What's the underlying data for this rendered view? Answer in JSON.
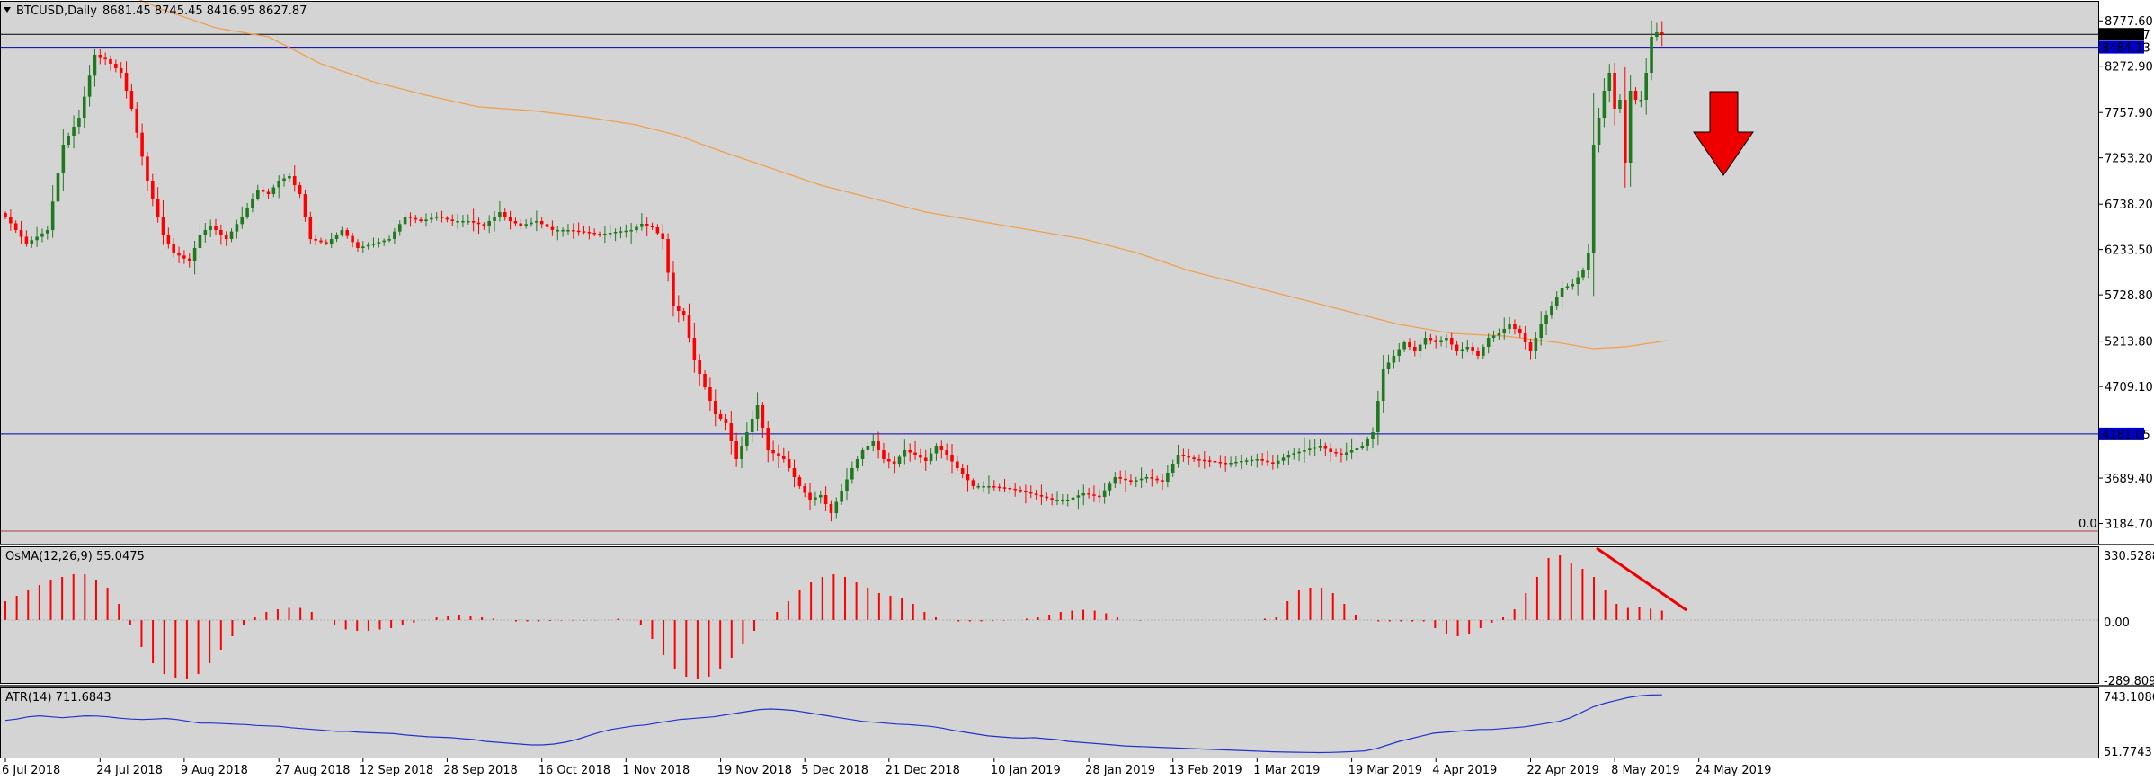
{
  "colors": {
    "background": "#d4d4d4",
    "frame": "#000000",
    "bull": "#1f7a1f",
    "bear": "#ff0000",
    "ma": "#f0a050",
    "hline_blue": "#0000aa",
    "hline_black": "#000000",
    "hline_zero": "#b04040",
    "histogram": "#ff0000",
    "atr_line": "#2233cc",
    "price_tag_black": "#000000",
    "price_tag_blue": "#0000cc",
    "arrow": "#ee0000",
    "arrow_outline": "#000000"
  },
  "header": {
    "title": "BTCUSD,Daily",
    "ohlc": "8681.45 8745.45 8416.95 8627.87",
    "menu_icon": "triangle-down-icon"
  },
  "price_tags": {
    "last": "8627.87",
    "level_high": "8484.13",
    "level_low": "4181.05",
    "zero_label": "0.0"
  },
  "osma": {
    "label": "OsMA(12,26,9) 55.0475",
    "ticks": [
      "330.5288",
      "0.00",
      "-289.8096"
    ]
  },
  "atr": {
    "label": "ATR(14) 711.6843",
    "ticks": [
      "743.1086",
      "51.7743"
    ]
  },
  "chart_data": {
    "type": "candlestick",
    "symbol": "BTCUSD",
    "timeframe": "Daily",
    "ylim": [
      2950,
      9000
    ],
    "y_ticks": [
      8777.6,
      8272.9,
      7757.9,
      7253.2,
      6738.2,
      6233.5,
      5728.8,
      5213.8,
      4709.1,
      3689.4,
      3184.7
    ],
    "y_tick_labels": [
      "8777.60",
      "8272.90",
      "7757.90",
      "7253.20",
      "6738.20",
      "6233.50",
      "5728.80",
      "5213.80",
      "4709.10",
      "3689.40",
      "3184.70"
    ],
    "x_labels": [
      {
        "label": "6 Jul 2018",
        "i": 0
      },
      {
        "label": "24 Jul 2018",
        "i": 18
      },
      {
        "label": "9 Aug 2018",
        "i": 34
      },
      {
        "label": "27 Aug 2018",
        "i": 52
      },
      {
        "label": "12 Sep 2018",
        "i": 68
      },
      {
        "label": "28 Sep 2018",
        "i": 84
      },
      {
        "label": "16 Oct 2018",
        "i": 102
      },
      {
        "label": "1 Nov 2018",
        "i": 118
      },
      {
        "label": "19 Nov 2018",
        "i": 136
      },
      {
        "label": "5 Dec 2018",
        "i": 152
      },
      {
        "label": "21 Dec 2018",
        "i": 168
      },
      {
        "label": "10 Jan 2019",
        "i": 188
      },
      {
        "label": "28 Jan 2019",
        "i": 206
      },
      {
        "label": "13 Feb 2019",
        "i": 222
      },
      {
        "label": "1 Mar 2019",
        "i": 238
      },
      {
        "label": "19 Mar 2019",
        "i": 256
      },
      {
        "label": "4 Apr 2019",
        "i": 272
      },
      {
        "label": "22 Apr 2019",
        "i": 290
      },
      {
        "label": "8 May 2019",
        "i": 306
      },
      {
        "label": "24 May 2019",
        "i": 322
      }
    ],
    "close_anchors": [
      [
        0,
        6600
      ],
      [
        4,
        6300
      ],
      [
        8,
        6450
      ],
      [
        11,
        7400
      ],
      [
        14,
        7700
      ],
      [
        17,
        8400
      ],
      [
        19,
        8350
      ],
      [
        22,
        8200
      ],
      [
        24,
        7800
      ],
      [
        27,
        7000
      ],
      [
        30,
        6400
      ],
      [
        32,
        6200
      ],
      [
        35,
        6100
      ],
      [
        37,
        6400
      ],
      [
        39,
        6500
      ],
      [
        42,
        6350
      ],
      [
        45,
        6600
      ],
      [
        48,
        6900
      ],
      [
        50,
        6850
      ],
      [
        52,
        7000
      ],
      [
        54,
        7050
      ],
      [
        56,
        6850
      ],
      [
        58,
        6350
      ],
      [
        61,
        6300
      ],
      [
        64,
        6450
      ],
      [
        67,
        6250
      ],
      [
        70,
        6300
      ],
      [
        73,
        6350
      ],
      [
        76,
        6600
      ],
      [
        79,
        6550
      ],
      [
        82,
        6600
      ],
      [
        85,
        6550
      ],
      [
        88,
        6550
      ],
      [
        91,
        6500
      ],
      [
        94,
        6650
      ],
      [
        96,
        6550
      ],
      [
        98,
        6500
      ],
      [
        101,
        6550
      ],
      [
        104,
        6450
      ],
      [
        107,
        6450
      ],
      [
        110,
        6430
      ],
      [
        113,
        6400
      ],
      [
        116,
        6430
      ],
      [
        119,
        6450
      ],
      [
        121,
        6520
      ],
      [
        123,
        6480
      ],
      [
        125,
        6350
      ],
      [
        127,
        5600
      ],
      [
        129,
        5500
      ],
      [
        131,
        5000
      ],
      [
        133,
        4700
      ],
      [
        135,
        4400
      ],
      [
        137,
        4300
      ],
      [
        139,
        3900
      ],
      [
        141,
        4200
      ],
      [
        143,
        4500
      ],
      [
        145,
        4000
      ],
      [
        148,
        3900
      ],
      [
        151,
        3600
      ],
      [
        153,
        3450
      ],
      [
        155,
        3500
      ],
      [
        157,
        3300
      ],
      [
        159,
        3550
      ],
      [
        161,
        3800
      ],
      [
        163,
        4000
      ],
      [
        165,
        4100
      ],
      [
        167,
        3900
      ],
      [
        169,
        3850
      ],
      [
        171,
        4000
      ],
      [
        173,
        3950
      ],
      [
        175,
        3880
      ],
      [
        177,
        4050
      ],
      [
        179,
        3950
      ],
      [
        181,
        3800
      ],
      [
        184,
        3600
      ],
      [
        187,
        3600
      ],
      [
        190,
        3580
      ],
      [
        193,
        3550
      ],
      [
        196,
        3500
      ],
      [
        199,
        3450
      ],
      [
        202,
        3450
      ],
      [
        205,
        3520
      ],
      [
        208,
        3480
      ],
      [
        211,
        3700
      ],
      [
        214,
        3650
      ],
      [
        217,
        3700
      ],
      [
        220,
        3650
      ],
      [
        223,
        3950
      ],
      [
        226,
        3900
      ],
      [
        229,
        3880
      ],
      [
        232,
        3850
      ],
      [
        235,
        3880
      ],
      [
        238,
        3900
      ],
      [
        241,
        3850
      ],
      [
        244,
        3950
      ],
      [
        247,
        4000
      ],
      [
        250,
        4050
      ],
      [
        252,
        3980
      ],
      [
        254,
        3950
      ],
      [
        256,
        4000
      ],
      [
        258,
        4050
      ],
      [
        260,
        4200
      ],
      [
        262,
        4900
      ],
      [
        264,
        5050
      ],
      [
        266,
        5200
      ],
      [
        268,
        5100
      ],
      [
        270,
        5250
      ],
      [
        272,
        5200
      ],
      [
        274,
        5250
      ],
      [
        276,
        5100
      ],
      [
        278,
        5150
      ],
      [
        280,
        5050
      ],
      [
        282,
        5250
      ],
      [
        284,
        5300
      ],
      [
        286,
        5400
      ],
      [
        288,
        5300
      ],
      [
        290,
        5100
      ],
      [
        292,
        5400
      ],
      [
        294,
        5600
      ],
      [
        296,
        5800
      ],
      [
        298,
        5850
      ],
      [
        300,
        6000
      ],
      [
        301,
        6200
      ],
      [
        302,
        7400
      ],
      [
        303,
        7700
      ],
      [
        304,
        8000
      ],
      [
        305,
        8200
      ],
      [
        306,
        7800
      ],
      [
        307,
        7900
      ],
      [
        308,
        7200
      ],
      [
        309,
        8000
      ],
      [
        310,
        7900
      ],
      [
        311,
        7900
      ],
      [
        312,
        8200
      ],
      [
        313,
        8600
      ],
      [
        314,
        8650
      ],
      [
        315,
        8630
      ]
    ],
    "ma200_anchors": [
      [
        20,
        9150
      ],
      [
        30,
        8900
      ],
      [
        40,
        8700
      ],
      [
        50,
        8600
      ],
      [
        60,
        8300
      ],
      [
        70,
        8100
      ],
      [
        80,
        7950
      ],
      [
        90,
        7820
      ],
      [
        100,
        7780
      ],
      [
        110,
        7710
      ],
      [
        120,
        7620
      ],
      [
        128,
        7500
      ],
      [
        135,
        7350
      ],
      [
        145,
        7150
      ],
      [
        155,
        6950
      ],
      [
        165,
        6800
      ],
      [
        175,
        6650
      ],
      [
        185,
        6550
      ],
      [
        195,
        6450
      ],
      [
        205,
        6350
      ],
      [
        215,
        6200
      ],
      [
        225,
        6000
      ],
      [
        235,
        5850
      ],
      [
        245,
        5700
      ],
      [
        255,
        5550
      ],
      [
        265,
        5400
      ],
      [
        275,
        5300
      ],
      [
        285,
        5270
      ],
      [
        295,
        5200
      ],
      [
        302,
        5130
      ],
      [
        308,
        5150
      ],
      [
        316,
        5220
      ]
    ],
    "hlines": [
      8627.87,
      8484.13,
      4181.05,
      3100
    ],
    "series": [
      {
        "values": [
          0.7,
          0.9,
          1.1,
          1.3,
          1.5,
          1.6,
          1.7,
          1.7,
          1.5,
          1.2,
          0.6,
          -0.2,
          -1.0,
          -1.6,
          -2.0,
          -2.15,
          -2.2,
          -2.0,
          -1.6,
          -1.1,
          -0.6,
          -0.2,
          0.1,
          0.3,
          0.4,
          0.45,
          0.45,
          0.3,
          0.0,
          -0.2,
          -0.35,
          -0.4,
          -0.4,
          -0.35,
          -0.3,
          -0.2,
          -0.1,
          0.0,
          0.1,
          0.15,
          0.2,
          0.15,
          0.1,
          0.05,
          0.0,
          -0.05,
          -0.05,
          -0.05,
          -0.03,
          -0.02,
          -0.02,
          -0.02,
          -0.01,
          0.0,
          0.05,
          0.0,
          -0.2,
          -0.7,
          -1.3,
          -1.8,
          -2.1,
          -2.2,
          -2.1,
          -1.8,
          -1.4,
          -0.9,
          -0.4,
          0.0,
          0.3,
          0.7,
          1.1,
          1.4,
          1.6,
          1.7,
          1.6,
          1.4,
          1.2,
          1.0,
          0.9,
          0.8,
          0.6,
          0.3,
          0.1,
          0.0,
          -0.05,
          -0.05,
          -0.05,
          -0.03,
          -0.02,
          0.0,
          0.05,
          0.1,
          0.2,
          0.3,
          0.35,
          0.38,
          0.35,
          0.25,
          0.1,
          0.0,
          -0.02,
          0.0,
          0.0,
          0.0,
          0.0,
          0.0,
          0.0,
          0.0,
          0.0,
          0.0,
          0.0,
          0.05,
          0.1,
          0.7,
          1.1,
          1.2,
          1.2,
          1.0,
          0.6,
          0.2,
          0.0,
          -0.05,
          -0.05,
          -0.05,
          -0.05,
          -0.05,
          -0.3,
          -0.5,
          -0.6,
          -0.5,
          -0.3,
          -0.1,
          0.1,
          0.4,
          1.0,
          1.6,
          2.3,
          2.4,
          2.1,
          1.9,
          1.6,
          1.1,
          0.6,
          0.45,
          0.5,
          0.42,
          0.35
        ]
      },
      {
        "values": [
          430,
          445,
          470,
          480,
          470,
          460,
          470,
          480,
          478,
          470,
          455,
          445,
          440,
          445,
          452,
          440,
          420,
          400,
          400,
          395,
          390,
          385,
          375,
          370,
          365,
          350,
          340,
          330,
          320,
          310,
          310,
          300,
          295,
          290,
          285,
          270,
          260,
          250,
          245,
          240,
          230,
          220,
          200,
          190,
          180,
          170,
          160,
          160,
          170,
          190,
          220,
          260,
          300,
          330,
          350,
          370,
          380,
          400,
          420,
          440,
          450,
          460,
          470,
          490,
          510,
          530,
          550,
          555,
          550,
          540,
          520,
          500,
          480,
          460,
          440,
          420,
          410,
          400,
          390,
          385,
          375,
          365,
          345,
          320,
          300,
          280,
          260,
          250,
          240,
          235,
          240,
          230,
          220,
          200,
          190,
          180,
          170,
          160,
          150,
          145,
          140,
          135,
          130,
          125,
          120,
          115,
          110,
          105,
          100,
          95,
          90,
          85,
          82,
          80,
          78,
          76,
          78,
          82,
          88,
          95,
          120,
          160,
          200,
          230,
          260,
          290,
          300,
          310,
          320,
          330,
          330,
          340,
          350,
          360,
          380,
          400,
          420,
          460,
          520,
          580,
          620,
          650,
          680,
          700,
          710,
          711.68
        ]
      }
    ]
  }
}
